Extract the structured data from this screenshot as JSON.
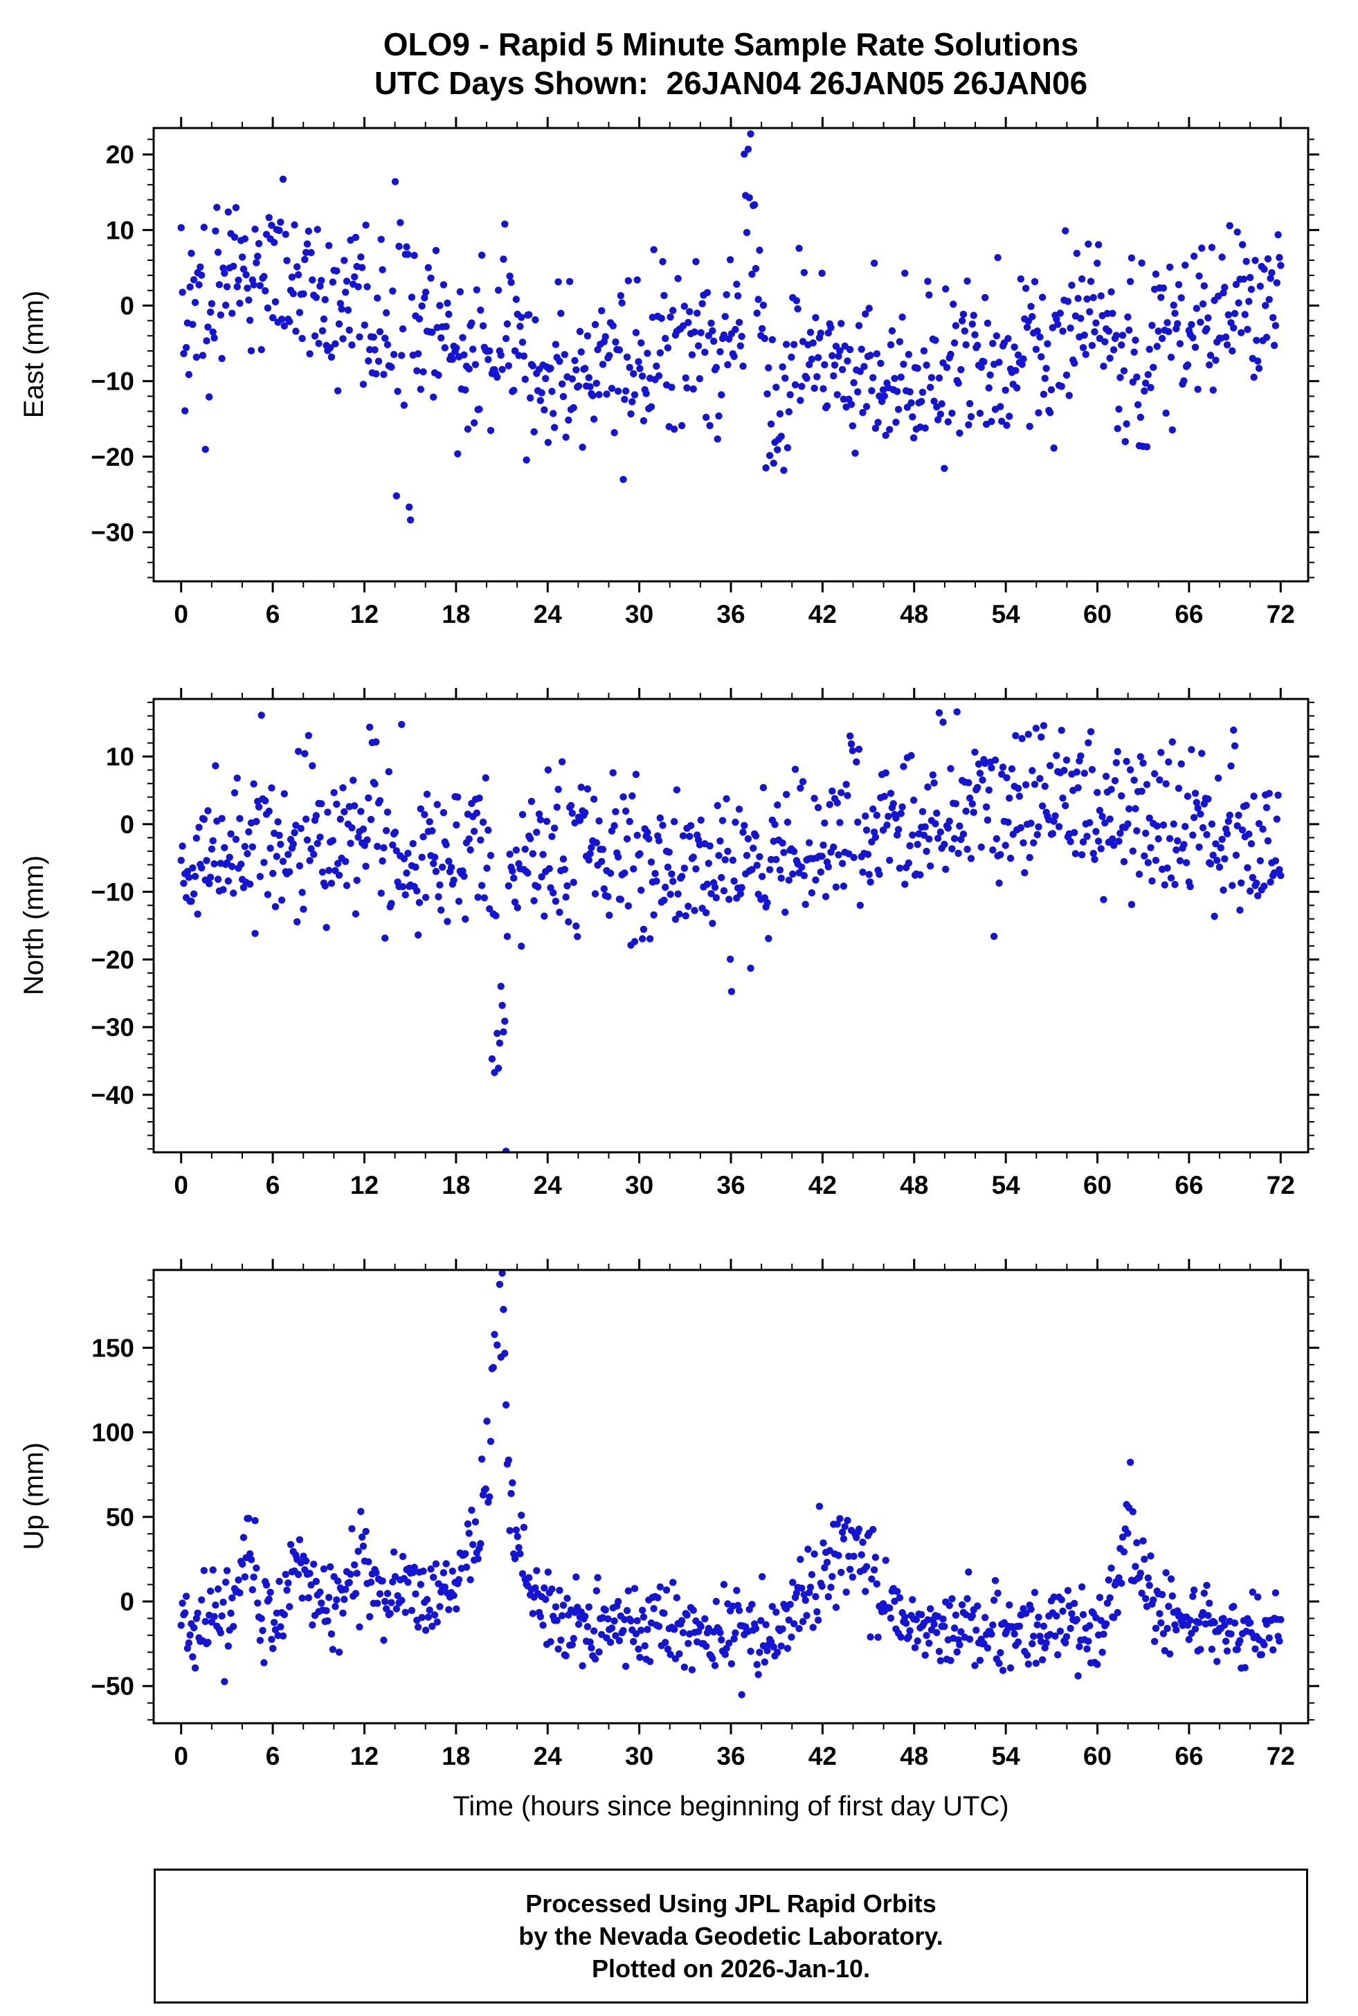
{
  "style": {
    "marker_color": "#1414d8",
    "axis_color": "#000000",
    "background": "#ffffff",
    "marker_radius": 5.2
  },
  "title": {
    "line1": "OLO9 - Rapid 5 Minute Sample Rate Solutions",
    "line2": "UTC Days Shown:  26JAN04 26JAN05 26JAN06"
  },
  "xlabel": "Time (hours since beginning of first day UTC)",
  "footer": {
    "line1": "Processed Using JPL Rapid Orbits",
    "line2": "by the Nevada Geodetic Laboratory.",
    "line3": "Plotted on 2026-Jan-10."
  },
  "chart_data": [
    {
      "type": "scatter",
      "ylabel": "East (mm)",
      "xlabel": "",
      "xlim": [
        -1.8,
        73.8
      ],
      "ylim": [
        -36.5,
        23.5
      ],
      "xticks": [
        0,
        6,
        12,
        18,
        24,
        30,
        36,
        42,
        48,
        54,
        60,
        66,
        72
      ],
      "yticks": [
        -30,
        -20,
        -10,
        0,
        10,
        20
      ],
      "x_minor_step": 2,
      "y_minor_step": 2,
      "grid": false,
      "gen": {
        "seed": 101,
        "n": 864,
        "mean": -4,
        "std": 5.2,
        "wave_amp": 4.5,
        "anomalies": [
          {
            "type": "burst",
            "x": 14.5,
            "w": 0.55,
            "amp": 27
          },
          {
            "type": "burst",
            "x": 14.55,
            "w": 0.55,
            "amp": -33
          },
          {
            "type": "burst",
            "x": 1.2,
            "w": 1.0,
            "amp": -12
          },
          {
            "type": "burst",
            "x": 37.2,
            "w": 0.4,
            "amp": 24
          },
          {
            "type": "burst",
            "x": 39.0,
            "w": 0.8,
            "amp": -16
          },
          {
            "type": "burst",
            "x": 21.5,
            "w": 0.8,
            "amp": 13
          },
          {
            "type": "burst",
            "x": 62.5,
            "w": 1.2,
            "amp": -14
          }
        ]
      }
    },
    {
      "type": "scatter",
      "ylabel": "North (mm)",
      "xlabel": "",
      "xlim": [
        -1.8,
        73.8
      ],
      "ylim": [
        -48.5,
        18.5
      ],
      "xticks": [
        0,
        6,
        12,
        18,
        24,
        30,
        36,
        42,
        48,
        54,
        60,
        66,
        72
      ],
      "yticks": [
        -40,
        -30,
        -20,
        -10,
        0,
        10
      ],
      "x_minor_step": 2,
      "y_minor_step": 2,
      "grid": false,
      "gen": {
        "seed": 202,
        "n": 864,
        "mean": -2.5,
        "std": 5.8,
        "wave_amp": 3.5,
        "anomalies": [
          {
            "type": "burst",
            "x": 20.8,
            "w": 0.5,
            "amp": -44
          },
          {
            "type": "burst",
            "x": 19.6,
            "w": 0.6,
            "amp": 12
          },
          {
            "type": "burst",
            "x": 43.9,
            "w": 0.5,
            "amp": 12
          },
          {
            "type": "burst",
            "x": 12.6,
            "w": 0.4,
            "amp": 10
          },
          {
            "type": "burst",
            "x": 30.5,
            "w": 0.4,
            "amp": -10
          }
        ]
      }
    },
    {
      "type": "scatter",
      "ylabel": "Up (mm)",
      "xlabel": "Time (hours since beginning of first day UTC)",
      "xlim": [
        -1.8,
        73.8
      ],
      "ylim": [
        -72,
        196
      ],
      "xticks": [
        0,
        6,
        12,
        18,
        24,
        30,
        36,
        42,
        48,
        54,
        60,
        66,
        72
      ],
      "yticks": [
        -50,
        0,
        50,
        100,
        150
      ],
      "x_minor_step": 2,
      "y_minor_step": 10,
      "grid": false,
      "gen": {
        "seed": 303,
        "n": 864,
        "mean": -13,
        "std": 12,
        "wave_amp": 8,
        "anomalies": [
          {
            "type": "peak",
            "x": 20.5,
            "w": 1.6,
            "amp": 65
          },
          {
            "type": "peak",
            "x": 20.9,
            "w": 0.4,
            "amp": 135
          },
          {
            "type": "peak",
            "x": 43.4,
            "w": 2.0,
            "amp": 55
          },
          {
            "type": "peak",
            "x": 62.2,
            "w": 0.8,
            "amp": 55
          },
          {
            "type": "peak",
            "x": 4.3,
            "w": 0.5,
            "amp": 40
          },
          {
            "type": "peak",
            "x": 7.8,
            "w": 0.7,
            "amp": 30
          },
          {
            "type": "peak",
            "x": 11.6,
            "w": 0.6,
            "amp": 28
          }
        ]
      }
    }
  ]
}
